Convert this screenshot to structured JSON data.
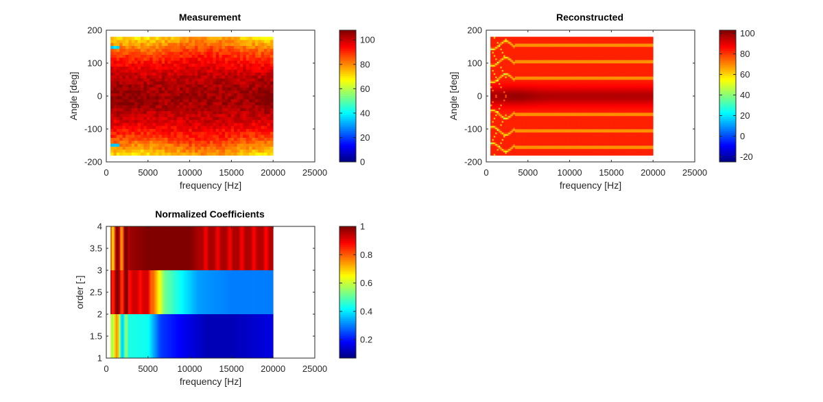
{
  "chart_data": [
    {
      "type": "heatmap",
      "title": "Measurement",
      "xlabel": "frequency [Hz]",
      "ylabel": "Angle [deg]",
      "xlim": [
        0,
        25000
      ],
      "ylim": [
        -200,
        200
      ],
      "xticks": [
        0,
        5000,
        10000,
        15000,
        20000,
        25000
      ],
      "yticks": [
        -200,
        -100,
        0,
        100,
        200
      ],
      "data_x_range": [
        500,
        20000
      ],
      "data_y_range": [
        -180,
        180
      ],
      "colormap": "jet",
      "clim": [
        0,
        108
      ],
      "colorbar_ticks": [
        0,
        20,
        40,
        60,
        80,
        100
      ],
      "pattern": "peak ~100-108 near 0 deg, decreasing to ~55-65 at +/-180 deg; cyan notch (~35) near +/-150 deg below 1500 Hz"
    },
    {
      "type": "heatmap",
      "title": "Reconstructed",
      "xlabel": "frequency [Hz]",
      "ylabel": "Angle [deg]",
      "xlim": [
        0,
        25000
      ],
      "ylim": [
        -200,
        200
      ],
      "xticks": [
        0,
        5000,
        10000,
        15000,
        20000,
        25000
      ],
      "yticks": [
        -200,
        -100,
        0,
        100,
        200
      ],
      "data_x_range": [
        500,
        20000
      ],
      "data_y_range": [
        -180,
        180
      ],
      "colormap": "jet",
      "clim": [
        -25,
        103
      ],
      "colorbar_ticks": [
        -20,
        0,
        20,
        40,
        60,
        80,
        100
      ],
      "pattern": "dark red ~100 around 0 deg; red ~80-85 elsewhere with light yellow ripple lines (~55-65) near +/-55, +/-105, +/-155 deg"
    },
    {
      "type": "heatmap",
      "title": "Normalized Coefficients",
      "xlabel": "frequency [Hz]",
      "ylabel": "order [-]",
      "xlim": [
        0,
        25000
      ],
      "ylim": [
        1,
        4
      ],
      "xticks": [
        0,
        5000,
        10000,
        15000,
        20000,
        25000
      ],
      "yticks": [
        1,
        1.5,
        2,
        2.5,
        3,
        3.5,
        4
      ],
      "data_x_range": [
        500,
        20000
      ],
      "colormap": "jet",
      "clim": [
        0.07,
        1
      ],
      "colorbar_ticks": [
        0.2,
        0.4,
        0.6,
        0.8,
        1
      ],
      "rows": [
        {
          "order_range": [
            3,
            4
          ],
          "frequencies": [
            500,
            1500,
            2500,
            5000,
            10000,
            11000,
            15000,
            20000
          ],
          "values": [
            0.85,
            0.88,
            0.97,
            1.0,
            1.0,
            0.96,
            0.96,
            0.95
          ]
        },
        {
          "order_range": [
            2,
            3
          ],
          "frequencies": [
            500,
            2000,
            5000,
            6000,
            7000,
            9000,
            11000,
            15000,
            20000
          ],
          "values": [
            0.96,
            0.93,
            0.92,
            0.72,
            0.52,
            0.42,
            0.33,
            0.3,
            0.3
          ]
        },
        {
          "order_range": [
            1,
            2
          ],
          "frequencies": [
            500,
            1000,
            2000,
            5000,
            6500,
            9000,
            12000,
            15000,
            20000
          ],
          "values": [
            0.62,
            0.72,
            0.45,
            0.43,
            0.24,
            0.18,
            0.12,
            0.12,
            0.16
          ]
        }
      ]
    }
  ],
  "colorbars": [
    {
      "ticks": [
        "0",
        "20",
        "40",
        "60",
        "80",
        "100"
      ]
    },
    {
      "ticks": [
        "-20",
        "0",
        "20",
        "40",
        "60",
        "80",
        "100"
      ]
    },
    {
      "ticks": [
        "0.2",
        "0.4",
        "0.6",
        "0.8",
        "1"
      ]
    }
  ],
  "axes": [
    {
      "title": "Measurement",
      "xlabel": "frequency [Hz]",
      "ylabel": "Angle [deg]",
      "xticks": [
        "0",
        "5000",
        "10000",
        "15000",
        "20000",
        "25000"
      ],
      "yticks": [
        "-200",
        "-100",
        "0",
        "100",
        "200"
      ]
    },
    {
      "title": "Reconstructed",
      "xlabel": "frequency [Hz]",
      "ylabel": "Angle [deg]",
      "xticks": [
        "0",
        "5000",
        "10000",
        "15000",
        "20000",
        "25000"
      ],
      "yticks": [
        "-200",
        "-100",
        "0",
        "100",
        "200"
      ]
    },
    {
      "title": "Normalized Coefficients",
      "xlabel": "frequency [Hz]",
      "ylabel": "order [-]",
      "xticks": [
        "0",
        "5000",
        "10000",
        "15000",
        "20000",
        "25000"
      ],
      "yticks": [
        "1",
        "1.5",
        "2",
        "2.5",
        "3",
        "3.5",
        "4"
      ]
    }
  ]
}
